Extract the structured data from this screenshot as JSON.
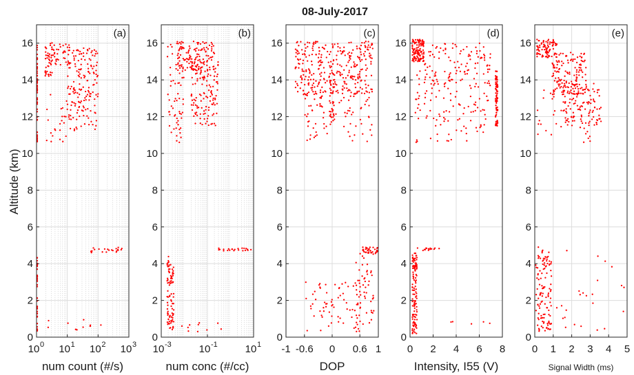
{
  "figure": {
    "title": "08-July-2017",
    "ylabel": "Altitude (km)",
    "point_color": "#ff0000"
  },
  "chart_data": [
    {
      "type": "scatter",
      "tag": "(a)",
      "xlabel": "num count (#/s)",
      "xscale": "log",
      "xlim": [
        1,
        1000
      ],
      "ylim": [
        0,
        17
      ],
      "grid": "on (minor)",
      "xticks": [
        {
          "v": 1,
          "base": "10",
          "exp": "0"
        },
        {
          "v": 10,
          "base": "10",
          "exp": "1"
        },
        {
          "v": 100,
          "base": "10",
          "exp": "2"
        },
        {
          "v": 1000,
          "base": "10",
          "exp": "3"
        }
      ],
      "yticks": [
        "0",
        "2",
        "4",
        "6",
        "8",
        "10",
        "12",
        "14",
        "16"
      ],
      "clusters": [
        {
          "x_range": [
            1,
            1.05
          ],
          "y_range": [
            0.2,
            4.6
          ],
          "n": 40
        },
        {
          "x_range": [
            1,
            1.05
          ],
          "y_range": [
            10.6,
            16.1
          ],
          "n": 60
        },
        {
          "x_range": [
            1.9,
            3.2
          ],
          "y_range": [
            14.2,
            16.1
          ],
          "n": 40
        },
        {
          "x_range": [
            3,
            12
          ],
          "y_range": [
            14.8,
            16.0
          ],
          "n": 40
        },
        {
          "x_range": [
            10,
            100
          ],
          "y_range": [
            11.2,
            15.8
          ],
          "n": 170
        },
        {
          "x_range": [
            2,
            20
          ],
          "y_range": [
            10.6,
            13.2
          ],
          "n": 25
        },
        {
          "x_range": [
            50,
            800
          ],
          "y_range": [
            4.6,
            4.9
          ],
          "n": 22
        },
        {
          "x_range": [
            2,
            200
          ],
          "y_range": [
            0.3,
            1.0
          ],
          "n": 10
        }
      ]
    },
    {
      "type": "scatter",
      "tag": "(b)",
      "xlabel": "num conc (#/cc)",
      "xscale": "log",
      "xlim": [
        0.001,
        10
      ],
      "ylim": [
        0,
        17
      ],
      "grid": "on (minor)",
      "xticks": [
        {
          "v": 0.001,
          "base": "10",
          "exp": "-3"
        },
        {
          "v": 0.1,
          "base": "10",
          "exp": "-1"
        },
        {
          "v": 10,
          "base": "10",
          "exp": "1"
        }
      ],
      "yticks": [
        "0",
        "2",
        "4",
        "6",
        "8",
        "10",
        "12",
        "14",
        "16"
      ],
      "clusters": [
        {
          "x_range": [
            0.0018,
            0.0035
          ],
          "y_range": [
            0.4,
            4.4
          ],
          "n": 90
        },
        {
          "x_range": [
            0.0018,
            0.01
          ],
          "y_range": [
            10.6,
            16.1
          ],
          "n": 70
        },
        {
          "x_range": [
            0.005,
            0.2
          ],
          "y_range": [
            14.5,
            16.1
          ],
          "n": 120
        },
        {
          "x_range": [
            0.02,
            0.3
          ],
          "y_range": [
            11.5,
            15.0
          ],
          "n": 130
        },
        {
          "x_range": [
            0.3,
            8
          ],
          "y_range": [
            4.7,
            4.85
          ],
          "n": 22
        },
        {
          "x_range": [
            0.005,
            0.5
          ],
          "y_range": [
            0.3,
            0.8
          ],
          "n": 10
        }
      ]
    },
    {
      "type": "scatter",
      "tag": "(c)",
      "xlabel": "DOP",
      "xscale": "linear",
      "xlim": [
        -1,
        1
      ],
      "ylim": [
        0,
        17
      ],
      "grid": "on",
      "xticks": [
        {
          "v": -1,
          "label": "-1"
        },
        {
          "v": -0.6,
          "label": "-0.6"
        },
        {
          "v": 0,
          "label": "0"
        },
        {
          "v": 0.6,
          "label": "0.6"
        },
        {
          "v": 1,
          "label": "1"
        }
      ],
      "yticks": [
        "0",
        "2",
        "4",
        "6",
        "8",
        "10",
        "12",
        "14",
        "16"
      ],
      "clusters": [
        {
          "x_range": [
            -0.8,
            0.9
          ],
          "y_range": [
            13.2,
            16.1
          ],
          "n": 320
        },
        {
          "x_range": [
            -0.05,
            0.05
          ],
          "y_range": [
            11.5,
            14.5
          ],
          "n": 40
        },
        {
          "x_range": [
            -0.6,
            0.9
          ],
          "y_range": [
            10.6,
            13.5
          ],
          "n": 90
        },
        {
          "x_range": [
            0.6,
            1.0
          ],
          "y_range": [
            4.5,
            4.9
          ],
          "n": 40
        },
        {
          "x_range": [
            0.5,
            0.9
          ],
          "y_range": [
            0.3,
            4.5
          ],
          "n": 60
        },
        {
          "x_range": [
            -0.6,
            0.6
          ],
          "y_range": [
            0.3,
            3.0
          ],
          "n": 60
        }
      ]
    },
    {
      "type": "scatter",
      "tag": "(d)",
      "xlabel": "Intensity, I55 (V)",
      "xscale": "linear",
      "xlim": [
        0,
        8
      ],
      "ylim": [
        0,
        17
      ],
      "grid": "on",
      "xticks": [
        {
          "v": 0,
          "label": "0"
        },
        {
          "v": 2,
          "label": "2"
        },
        {
          "v": 4,
          "label": "4"
        },
        {
          "v": 6,
          "label": "6"
        },
        {
          "v": 8,
          "label": "8"
        }
      ],
      "yticks": [
        "0",
        "2",
        "4",
        "6",
        "8",
        "10",
        "12",
        "14",
        "16"
      ],
      "clusters": [
        {
          "x_range": [
            0.2,
            1.2
          ],
          "y_range": [
            15.0,
            16.2
          ],
          "n": 120
        },
        {
          "x_range": [
            0.4,
            7.0
          ],
          "y_range": [
            13.5,
            16.0
          ],
          "n": 140
        },
        {
          "x_range": [
            0.4,
            7.0
          ],
          "y_range": [
            10.6,
            13.5
          ],
          "n": 90
        },
        {
          "x_range": [
            7.4,
            7.6
          ],
          "y_range": [
            11.5,
            14.5
          ],
          "n": 80
        },
        {
          "x_range": [
            0.2,
            0.6
          ],
          "y_range": [
            0.2,
            4.6
          ],
          "n": 120
        },
        {
          "x_range": [
            0.6,
            3.2
          ],
          "y_range": [
            4.7,
            4.85
          ],
          "n": 14
        },
        {
          "x_range": [
            3.5,
            7.5
          ],
          "y_range": [
            0.3,
            1.0
          ],
          "n": 5
        }
      ]
    },
    {
      "type": "scatter",
      "tag": "(e)",
      "xlabel": "Signal Width (ms)",
      "xscale": "linear",
      "xlim": [
        0,
        5
      ],
      "ylim": [
        0,
        17
      ],
      "grid": "on",
      "xticks": [
        {
          "v": 0,
          "label": "0"
        },
        {
          "v": 1,
          "label": "1"
        },
        {
          "v": 2,
          "label": "2"
        },
        {
          "v": 3,
          "label": "3"
        },
        {
          "v": 4,
          "label": "4"
        },
        {
          "v": 5,
          "label": "5"
        }
      ],
      "yticks": [
        "0",
        "2",
        "4",
        "6",
        "8",
        "10",
        "12",
        "14",
        "16"
      ],
      "clusters": [
        {
          "x_range": [
            0.1,
            1.2
          ],
          "y_range": [
            15.2,
            16.2
          ],
          "n": 90
        },
        {
          "x_range": [
            0.8,
            2.8
          ],
          "y_range": [
            13.2,
            15.5
          ],
          "n": 150
        },
        {
          "x_range": [
            1.5,
            3.6
          ],
          "y_range": [
            11.5,
            13.8
          ],
          "n": 110
        },
        {
          "x_range": [
            0.1,
            3.0
          ],
          "y_range": [
            10.6,
            13.5
          ],
          "n": 40
        },
        {
          "x_range": [
            0.05,
            0.9
          ],
          "y_range": [
            0.3,
            4.9
          ],
          "n": 120
        },
        {
          "x_range": [
            0.8,
            4.9
          ],
          "y_range": [
            0.3,
            4.8
          ],
          "n": 25
        }
      ]
    }
  ]
}
